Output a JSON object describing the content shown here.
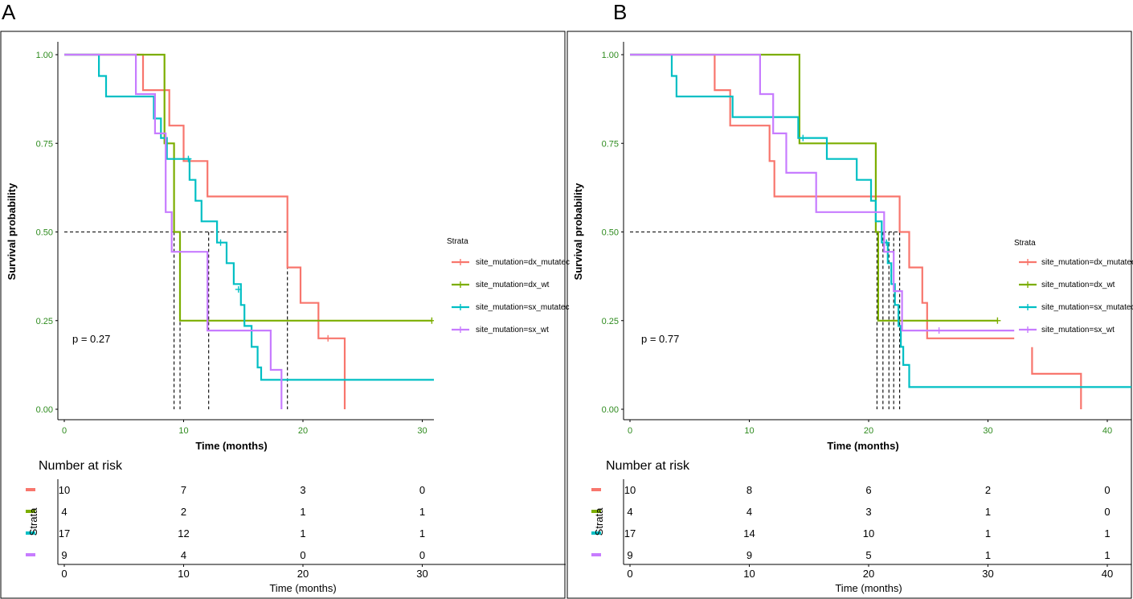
{
  "chart_data": [
    {
      "type": "line",
      "subtype": "kaplan-meier",
      "panel": "A",
      "xlabel": "Time (months)",
      "ylabel": "Survival probability",
      "xlim": [
        0,
        40
      ],
      "ylim": [
        0,
        1
      ],
      "xticks": [
        0,
        10,
        20,
        30
      ],
      "xtick_labels": [
        "0",
        "10",
        "20",
        "30"
      ],
      "yticks": [
        0,
        0.25,
        0.5,
        0.75,
        1.0
      ],
      "ytick_labels": [
        "0.00",
        "0.25",
        "0.50",
        "0.75",
        "1.00"
      ],
      "pvalue_text": "p = 0.27",
      "legend_title": "Strata",
      "legend_position": "right",
      "median_line": {
        "y": 0.5,
        "x_end": 18.7,
        "drops": [
          9.2,
          9.7,
          12.1,
          18.7
        ]
      },
      "series": [
        {
          "name": "site_mutation=dx_mutated",
          "display": "site_mutation=dx_mutatec",
          "color": "#f8766d",
          "points": [
            [
              0,
              1
            ],
            [
              6.6,
              1
            ],
            [
              6.6,
              0.9
            ],
            [
              8.8,
              0.9
            ],
            [
              8.8,
              0.8
            ],
            [
              10,
              0.8
            ],
            [
              10,
              0.7
            ],
            [
              12,
              0.7
            ],
            [
              12,
              0.6
            ],
            [
              18.7,
              0.6
            ],
            [
              18.7,
              0.4
            ],
            [
              19.8,
              0.4
            ],
            [
              19.8,
              0.3
            ],
            [
              21.3,
              0.3
            ],
            [
              21.3,
              0.2
            ],
            [
              23.5,
              0.2
            ],
            [
              23.5,
              0
            ]
          ],
          "censors": [
            [
              22.1,
              0.2
            ]
          ]
        },
        {
          "name": "site_mutation=dx_wt",
          "display": "site_mutation=dx_wt",
          "color": "#7cae00",
          "points": [
            [
              0,
              1
            ],
            [
              8.4,
              1
            ],
            [
              8.4,
              0.75
            ],
            [
              9.2,
              0.75
            ],
            [
              9.2,
              0.5
            ],
            [
              9.7,
              0.5
            ],
            [
              9.7,
              0.25
            ],
            [
              30.8,
              0.25
            ]
          ],
          "censors": [
            [
              30.8,
              0.25
            ]
          ]
        },
        {
          "name": "site_mutation=sx_mutated",
          "display": "site_mutation=sx_mutatec",
          "color": "#00bfc4",
          "points": [
            [
              0,
              1
            ],
            [
              2.9,
              1
            ],
            [
              2.9,
              0.94
            ],
            [
              3.5,
              0.94
            ],
            [
              3.5,
              0.882
            ],
            [
              7.5,
              0.882
            ],
            [
              7.5,
              0.82
            ],
            [
              8.1,
              0.82
            ],
            [
              8.1,
              0.765
            ],
            [
              8.6,
              0.765
            ],
            [
              8.6,
              0.706
            ],
            [
              10.5,
              0.706
            ],
            [
              10.5,
              0.647
            ],
            [
              11,
              0.647
            ],
            [
              11,
              0.588
            ],
            [
              11.5,
              0.588
            ],
            [
              11.5,
              0.53
            ],
            [
              12.8,
              0.53
            ],
            [
              12.8,
              0.47
            ],
            [
              13.6,
              0.47
            ],
            [
              13.6,
              0.412
            ],
            [
              14.2,
              0.412
            ],
            [
              14.2,
              0.353
            ],
            [
              14.8,
              0.353
            ],
            [
              14.8,
              0.294
            ],
            [
              15.1,
              0.294
            ],
            [
              15.1,
              0.235
            ],
            [
              15.7,
              0.235
            ],
            [
              15.7,
              0.176
            ],
            [
              16.2,
              0.176
            ],
            [
              16.2,
              0.118
            ],
            [
              16.5,
              0.118
            ],
            [
              16.5,
              0.083
            ],
            [
              32.7,
              0.083
            ],
            [
              32.7,
              0
            ]
          ],
          "censors": [
            [
              10.4,
              0.706
            ],
            [
              13.1,
              0.47
            ],
            [
              14.6,
              0.338
            ]
          ]
        },
        {
          "name": "site_mutation=sx_wt",
          "display": "site_mutation=sx_wt",
          "color": "#c77cff",
          "points": [
            [
              0,
              1
            ],
            [
              6,
              1
            ],
            [
              6,
              0.889
            ],
            [
              7.6,
              0.889
            ],
            [
              7.6,
              0.778
            ],
            [
              8.5,
              0.778
            ],
            [
              8.5,
              0.556
            ],
            [
              9,
              0.556
            ],
            [
              9,
              0.444
            ],
            [
              12,
              0.444
            ],
            [
              12,
              0.222
            ],
            [
              17.3,
              0.222
            ],
            [
              17.3,
              0.111
            ],
            [
              18.2,
              0.111
            ],
            [
              18.2,
              0
            ]
          ],
          "censors": []
        }
      ],
      "risk_table": {
        "title": "Number at risk",
        "strata_label": "Strata",
        "xlabel": "Time (months)",
        "times": [
          0,
          10,
          20,
          30
        ],
        "time_labels": [
          "0",
          "10",
          "20",
          "30"
        ],
        "rows": [
          {
            "color": "#f8766d",
            "values": [
              "10",
              "7",
              "3",
              "0"
            ]
          },
          {
            "color": "#7cae00",
            "values": [
              "4",
              "2",
              "1",
              "1"
            ]
          },
          {
            "color": "#00bfc4",
            "values": [
              "17",
              "12",
              "1",
              "1"
            ]
          },
          {
            "color": "#c77cff",
            "values": [
              "9",
              "4",
              "0",
              "0"
            ]
          }
        ]
      }
    },
    {
      "type": "line",
      "subtype": "kaplan-meier",
      "panel": "B",
      "xlabel": "Time (months)",
      "ylabel": "Survival probability",
      "xlim": [
        0,
        40
      ],
      "ylim": [
        0,
        1
      ],
      "xticks": [
        0,
        10,
        20,
        30,
        40
      ],
      "xtick_labels": [
        "0",
        "10",
        "20",
        "30",
        "40"
      ],
      "yticks": [
        0,
        0.25,
        0.5,
        0.75,
        1.0
      ],
      "ytick_labels": [
        "0.00",
        "0.25",
        "0.50",
        "0.75",
        "1.00"
      ],
      "pvalue_text": "p = 0.77",
      "legend_title": "Strata",
      "legend_position": "right",
      "median_line": {
        "y": 0.5,
        "x_end": 22.6,
        "drops": [
          20.7,
          21.2,
          21.7,
          22.1,
          22.6
        ]
      },
      "series": [
        {
          "name": "site_mutation=dx_mutated",
          "display": "site_mutation=dx_mutatec",
          "color": "#f8766d",
          "points": [
            [
              0,
              1
            ],
            [
              7.1,
              1
            ],
            [
              7.1,
              0.9
            ],
            [
              8.4,
              0.9
            ],
            [
              8.4,
              0.8
            ],
            [
              11.7,
              0.8
            ],
            [
              11.7,
              0.7
            ],
            [
              12.1,
              0.7
            ],
            [
              12.1,
              0.6
            ],
            [
              22.6,
              0.6
            ],
            [
              22.6,
              0.5
            ],
            [
              23.4,
              0.5
            ],
            [
              23.4,
              0.4
            ],
            [
              24.5,
              0.4
            ],
            [
              24.5,
              0.3
            ],
            [
              24.9,
              0.3
            ],
            [
              24.9,
              0.2
            ],
            [
              32.2,
              0.2
            ]
          ],
          "censors": [],
          "extra_segments": [
            [
              [
                33.7,
                0.175
              ],
              [
                33.7,
                0.1
              ],
              [
                37.8,
                0.1
              ],
              [
                37.8,
                0
              ]
            ]
          ]
        },
        {
          "name": "site_mutation=dx_wt",
          "display": "site_mutation=dx_wt",
          "color": "#7cae00",
          "points": [
            [
              0,
              1
            ],
            [
              14.2,
              1
            ],
            [
              14.2,
              0.75
            ],
            [
              20.6,
              0.75
            ],
            [
              20.6,
              0.5
            ],
            [
              20.8,
              0.5
            ],
            [
              20.8,
              0.25
            ],
            [
              30.8,
              0.25
            ]
          ],
          "censors": [
            [
              30.8,
              0.25
            ]
          ]
        },
        {
          "name": "site_mutation=sx_mutated",
          "display": "site_mutation=sx_mutatec",
          "color": "#00bfc4",
          "points": [
            [
              0,
              1
            ],
            [
              3.5,
              1
            ],
            [
              3.5,
              0.94
            ],
            [
              3.9,
              0.94
            ],
            [
              3.9,
              0.882
            ],
            [
              8.6,
              0.882
            ],
            [
              8.6,
              0.824
            ],
            [
              14.1,
              0.824
            ],
            [
              14.1,
              0.765
            ],
            [
              16.5,
              0.765
            ],
            [
              16.5,
              0.706
            ],
            [
              19,
              0.706
            ],
            [
              19,
              0.647
            ],
            [
              20.2,
              0.647
            ],
            [
              20.2,
              0.588
            ],
            [
              20.6,
              0.588
            ],
            [
              20.6,
              0.53
            ],
            [
              21.1,
              0.53
            ],
            [
              21.1,
              0.47
            ],
            [
              21.6,
              0.47
            ],
            [
              21.6,
              0.412
            ],
            [
              21.9,
              0.412
            ],
            [
              21.9,
              0.353
            ],
            [
              22.2,
              0.353
            ],
            [
              22.2,
              0.294
            ],
            [
              22.5,
              0.294
            ],
            [
              22.5,
              0.235
            ],
            [
              22.7,
              0.235
            ],
            [
              22.7,
              0.176
            ],
            [
              22.9,
              0.176
            ],
            [
              22.9,
              0.125
            ],
            [
              23.4,
              0.125
            ],
            [
              23.4,
              0.0625
            ],
            [
              43,
              0.0625
            ]
          ],
          "censors": [
            [
              14.5,
              0.765
            ],
            [
              21.5,
              0.47
            ]
          ]
        },
        {
          "name": "site_mutation=sx_wt",
          "display": "site_mutation=sx_wt",
          "color": "#c77cff",
          "points": [
            [
              0,
              1
            ],
            [
              10.9,
              1
            ],
            [
              10.9,
              0.889
            ],
            [
              12,
              0.889
            ],
            [
              12,
              0.778
            ],
            [
              13.1,
              0.778
            ],
            [
              13.1,
              0.667
            ],
            [
              15.6,
              0.667
            ],
            [
              15.6,
              0.556
            ],
            [
              21.3,
              0.556
            ],
            [
              21.3,
              0.444
            ],
            [
              22.1,
              0.444
            ],
            [
              22.1,
              0.333
            ],
            [
              22.8,
              0.333
            ],
            [
              22.8,
              0.222
            ],
            [
              32.2,
              0.222
            ]
          ],
          "censors": [
            [
              25.9,
              0.222
            ]
          ]
        }
      ],
      "risk_table": {
        "title": "Number at risk",
        "strata_label": "Strata",
        "xlabel": "Time (months)",
        "times": [
          0,
          10,
          20,
          30,
          40
        ],
        "time_labels": [
          "0",
          "10",
          "20",
          "30",
          "40"
        ],
        "rows": [
          {
            "color": "#f8766d",
            "values": [
              "10",
              "8",
              "6",
              "2",
              "0"
            ]
          },
          {
            "color": "#7cae00",
            "values": [
              "4",
              "4",
              "3",
              "1",
              "0"
            ]
          },
          {
            "color": "#00bfc4",
            "values": [
              "17",
              "14",
              "10",
              "1",
              "1"
            ]
          },
          {
            "color": "#c77cff",
            "values": [
              "9",
              "9",
              "5",
              "1",
              "1"
            ]
          }
        ]
      }
    }
  ]
}
